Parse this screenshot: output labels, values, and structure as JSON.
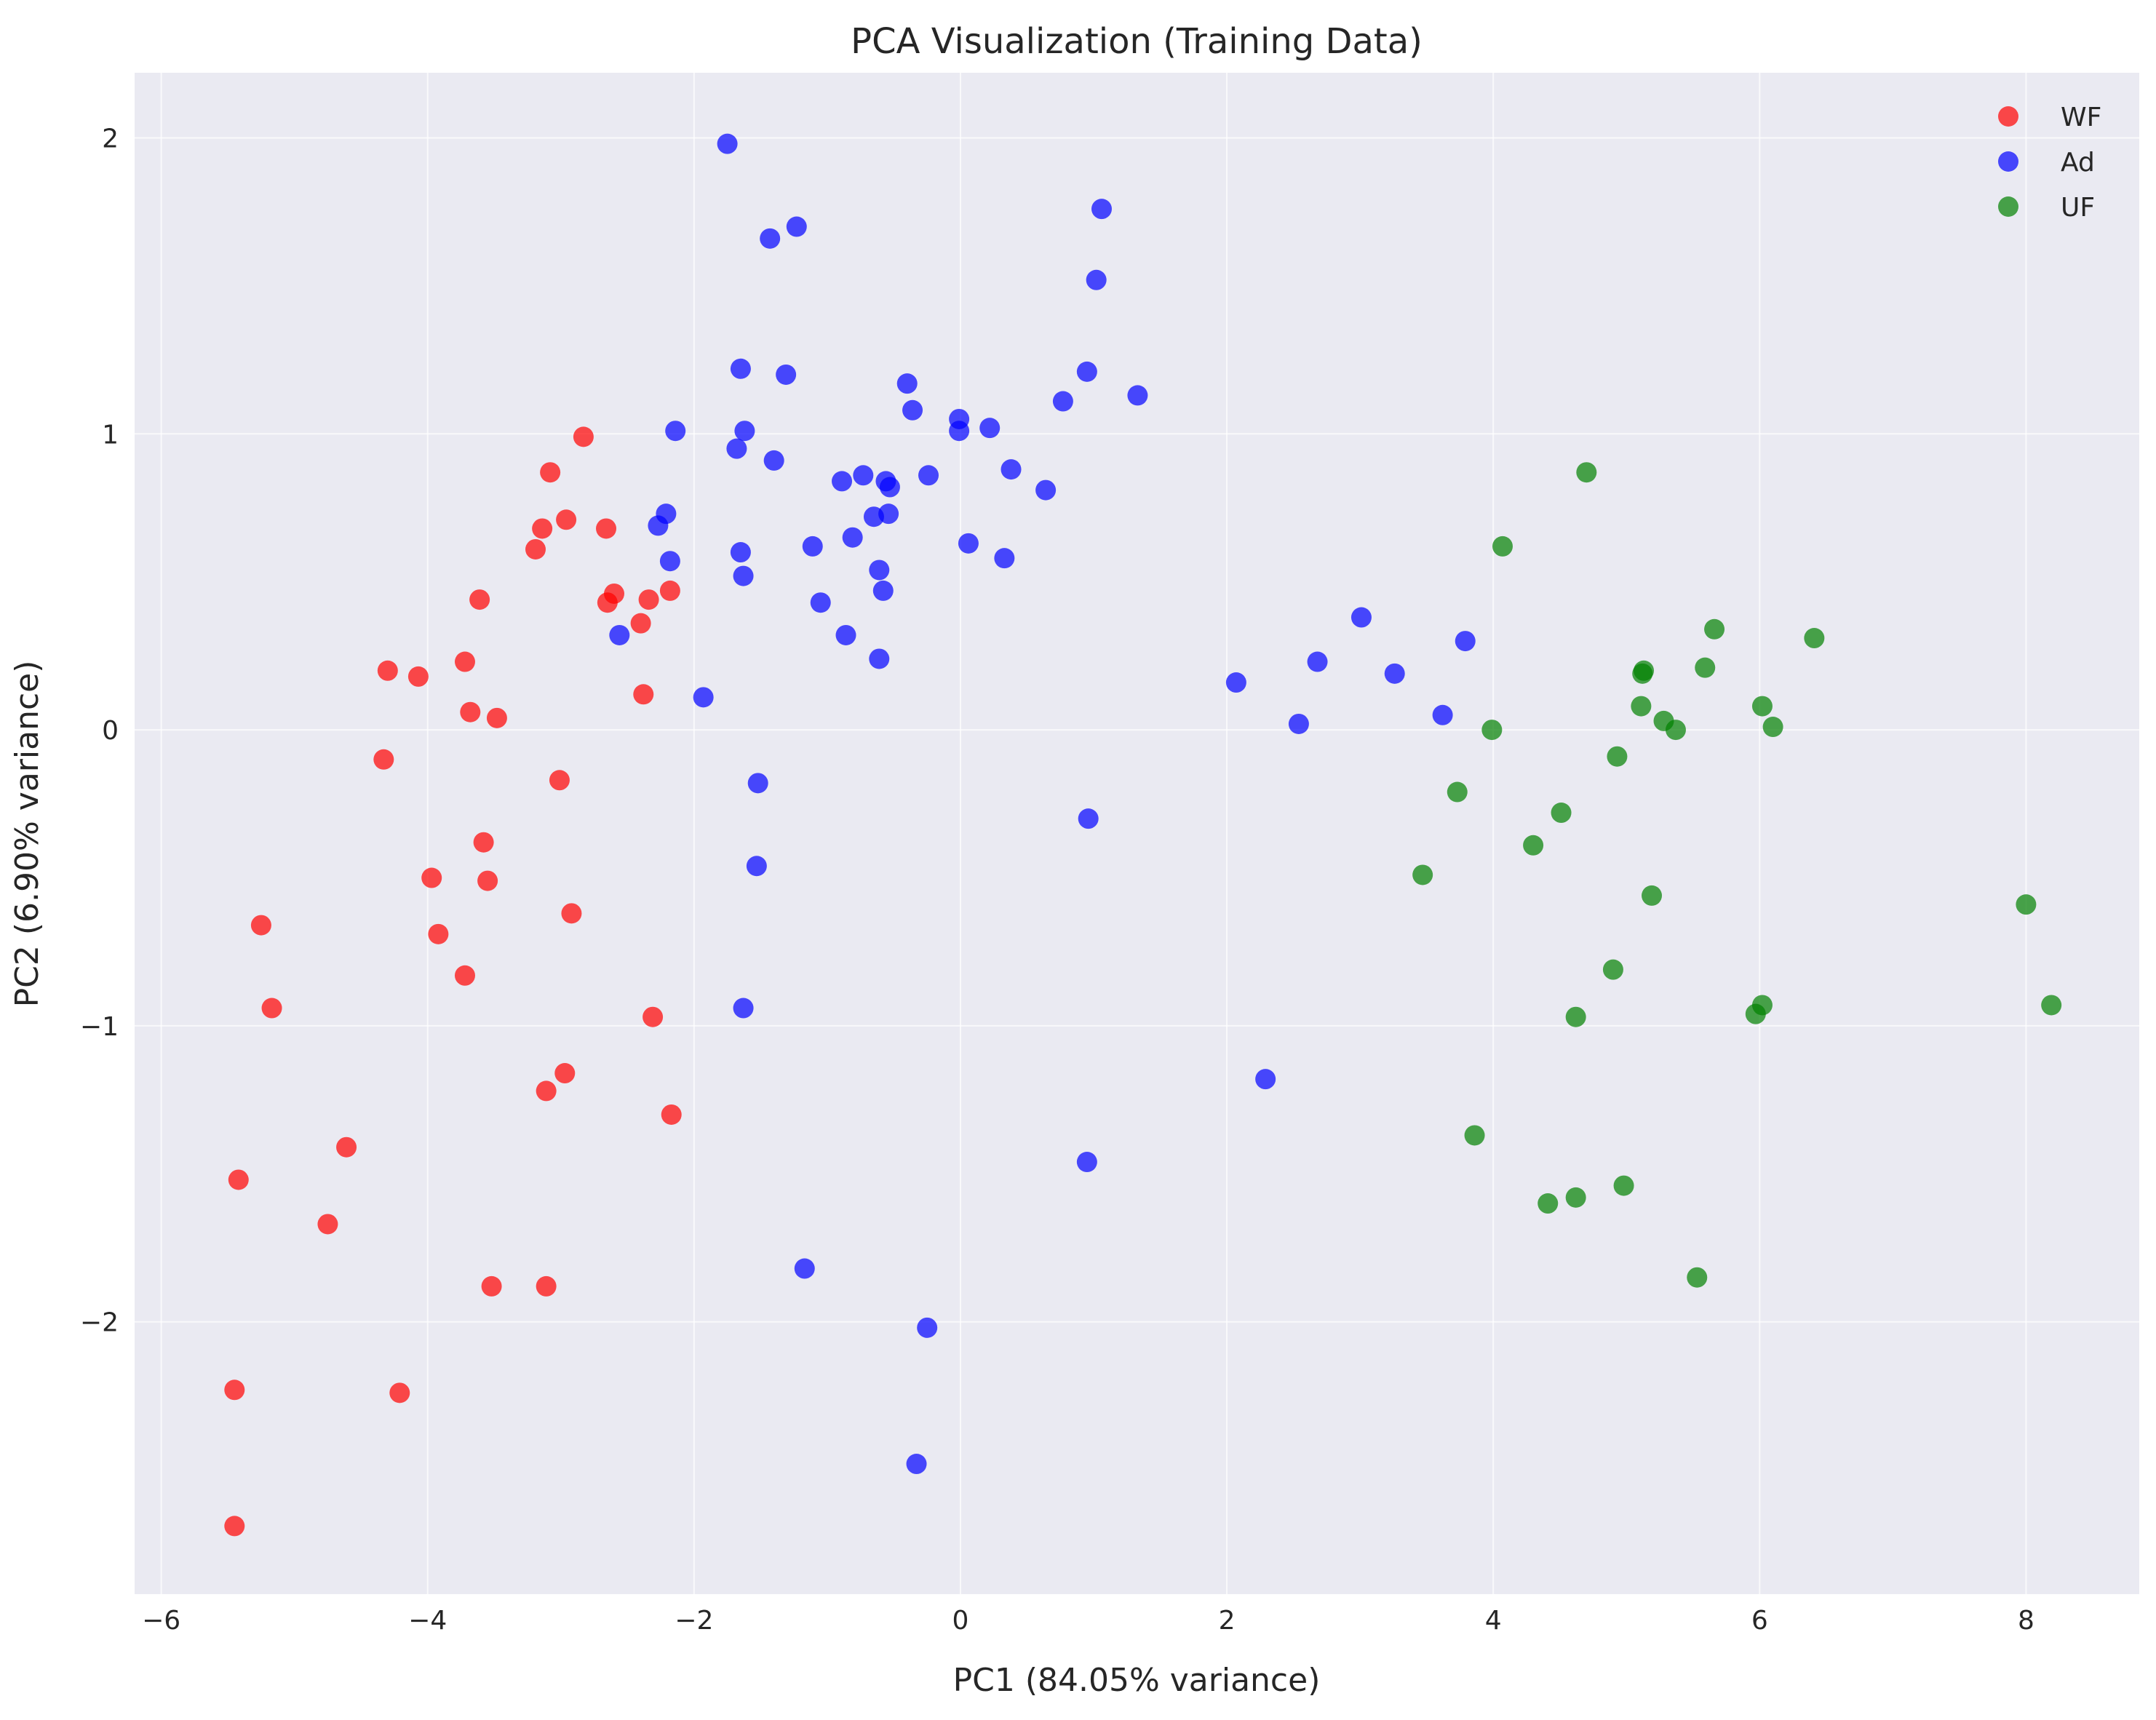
{
  "chart_data": {
    "type": "scatter",
    "title": "PCA Visualization (Training Data)",
    "xlabel": "PC1 (84.05% variance)",
    "ylabel": "PC2 (6.90% variance)",
    "xlim": [
      -6.2,
      8.85
    ],
    "ylim": [
      -2.92,
      2.22
    ],
    "xticks": [
      -6,
      -4,
      -2,
      0,
      2,
      4,
      6,
      8
    ],
    "yticks": [
      -2,
      -1,
      0,
      1,
      2
    ],
    "xtick_labels": [
      "−6",
      "−4",
      "−2",
      "0",
      "2",
      "4",
      "6",
      "8"
    ],
    "ytick_labels": [
      "−2",
      "−1",
      "0",
      "1",
      "2"
    ],
    "grid": true,
    "legend_position": "top-right",
    "background_color": "#eaeaf2",
    "series": [
      {
        "name": "WF",
        "color": "#ff0000",
        "points": [
          [
            -5.45,
            -2.69
          ],
          [
            -5.45,
            -2.23
          ],
          [
            -5.42,
            -1.52
          ],
          [
            -5.25,
            -0.66
          ],
          [
            -5.17,
            -0.94
          ],
          [
            -4.75,
            -1.67
          ],
          [
            -4.61,
            -1.41
          ],
          [
            -4.33,
            -0.1
          ],
          [
            -4.3,
            0.2
          ],
          [
            -4.21,
            -2.24
          ],
          [
            -4.07,
            0.18
          ],
          [
            -3.97,
            -0.5
          ],
          [
            -3.92,
            -0.69
          ],
          [
            -3.72,
            0.23
          ],
          [
            -3.72,
            -0.83
          ],
          [
            -3.68,
            0.06
          ],
          [
            -3.61,
            0.44
          ],
          [
            -3.58,
            -0.38
          ],
          [
            -3.55,
            -0.51
          ],
          [
            -3.52,
            -1.88
          ],
          [
            -3.48,
            0.04
          ],
          [
            -3.19,
            0.61
          ],
          [
            -3.14,
            0.68
          ],
          [
            -3.11,
            -1.22
          ],
          [
            -3.11,
            -1.88
          ],
          [
            -3.08,
            0.87
          ],
          [
            -3.01,
            -0.17
          ],
          [
            -2.97,
            -1.16
          ],
          [
            -2.96,
            0.71
          ],
          [
            -2.92,
            -0.62
          ],
          [
            -2.83,
            0.99
          ],
          [
            -2.66,
            0.68
          ],
          [
            -2.65,
            0.43
          ],
          [
            -2.6,
            0.46
          ],
          [
            -2.4,
            0.36
          ],
          [
            -2.38,
            0.12
          ],
          [
            -2.34,
            0.44
          ],
          [
            -2.31,
            -0.97
          ],
          [
            -2.18,
            0.47
          ],
          [
            -2.17,
            -1.3
          ]
        ]
      },
      {
        "name": "Ad",
        "color": "#0000ff",
        "points": [
          [
            -2.56,
            0.32
          ],
          [
            -2.27,
            0.69
          ],
          [
            -2.21,
            0.73
          ],
          [
            -2.18,
            0.57
          ],
          [
            -2.14,
            1.01
          ],
          [
            -1.93,
            0.11
          ],
          [
            -1.75,
            1.98
          ],
          [
            -1.68,
            0.95
          ],
          [
            -1.65,
            1.22
          ],
          [
            -1.65,
            0.6
          ],
          [
            -1.63,
            0.52
          ],
          [
            -1.62,
            1.01
          ],
          [
            -1.63,
            -0.94
          ],
          [
            -1.52,
            -0.18
          ],
          [
            -1.53,
            -0.46
          ],
          [
            -1.43,
            1.66
          ],
          [
            -1.4,
            0.91
          ],
          [
            -1.31,
            1.2
          ],
          [
            -1.23,
            1.7
          ],
          [
            -1.17,
            -1.82
          ],
          [
            -1.11,
            0.62
          ],
          [
            -1.05,
            0.43
          ],
          [
            -0.89,
            0.84
          ],
          [
            -0.86,
            0.32
          ],
          [
            -0.81,
            0.65
          ],
          [
            -0.73,
            0.86
          ],
          [
            -0.65,
            0.72
          ],
          [
            -0.61,
            0.54
          ],
          [
            -0.61,
            0.24
          ],
          [
            -0.58,
            0.47
          ],
          [
            -0.56,
            0.84
          ],
          [
            -0.54,
            0.73
          ],
          [
            -0.53,
            0.82
          ],
          [
            -0.4,
            1.17
          ],
          [
            -0.36,
            1.08
          ],
          [
            -0.33,
            -2.48
          ],
          [
            -0.25,
            -2.02
          ],
          [
            -0.24,
            0.86
          ],
          [
            -0.01,
            1.05
          ],
          [
            -0.01,
            1.01
          ],
          [
            0.06,
            0.63
          ],
          [
            0.22,
            1.02
          ],
          [
            0.33,
            0.58
          ],
          [
            0.38,
            0.88
          ],
          [
            0.64,
            0.81
          ],
          [
            0.77,
            1.11
          ],
          [
            0.95,
            1.21
          ],
          [
            0.95,
            -1.46
          ],
          [
            0.96,
            -0.3
          ],
          [
            1.02,
            1.52
          ],
          [
            1.06,
            1.76
          ],
          [
            1.33,
            1.13
          ],
          [
            2.07,
            0.16
          ],
          [
            2.29,
            -1.18
          ],
          [
            2.54,
            0.02
          ],
          [
            2.68,
            0.23
          ],
          [
            3.01,
            0.38
          ],
          [
            3.26,
            0.19
          ],
          [
            3.62,
            0.05
          ],
          [
            3.79,
            0.3
          ]
        ]
      },
      {
        "name": "UF",
        "color": "#008000",
        "points": [
          [
            3.47,
            -0.49
          ],
          [
            3.73,
            -0.21
          ],
          [
            3.86,
            -1.37
          ],
          [
            3.99,
            0.0
          ],
          [
            4.07,
            0.62
          ],
          [
            4.3,
            -0.39
          ],
          [
            4.41,
            -1.6
          ],
          [
            4.51,
            -0.28
          ],
          [
            4.62,
            -0.97
          ],
          [
            4.62,
            -1.58
          ],
          [
            4.7,
            0.87
          ],
          [
            4.9,
            -0.81
          ],
          [
            4.93,
            -0.09
          ],
          [
            4.98,
            -1.54
          ],
          [
            5.11,
            0.08
          ],
          [
            5.12,
            0.19
          ],
          [
            5.13,
            0.2
          ],
          [
            5.19,
            -0.56
          ],
          [
            5.28,
            0.03
          ],
          [
            5.37,
            0.0
          ],
          [
            5.53,
            -1.85
          ],
          [
            5.59,
            0.21
          ],
          [
            5.66,
            0.34
          ],
          [
            5.97,
            -0.96
          ],
          [
            6.02,
            -0.93
          ],
          [
            6.02,
            0.08
          ],
          [
            6.1,
            0.01
          ],
          [
            6.41,
            0.31
          ],
          [
            8.0,
            -0.59
          ],
          [
            8.19,
            -0.93
          ]
        ]
      }
    ]
  }
}
